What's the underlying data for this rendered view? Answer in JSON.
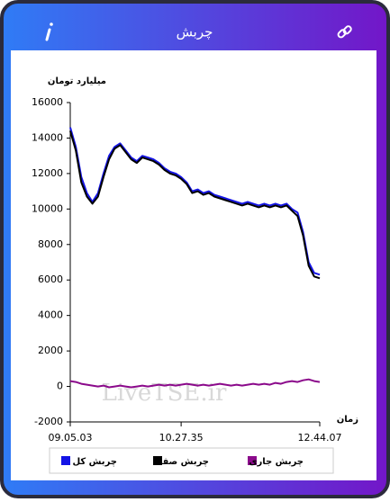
{
  "header": {
    "title": "چربش"
  },
  "chart_data": {
    "type": "line",
    "ylabel": "میلیارد تومان",
    "xlabel": "زمان",
    "watermark": "LiveTSE.ir",
    "categories": [
      "09.05.03",
      null,
      null,
      null,
      null,
      null,
      null,
      null,
      null,
      null,
      null,
      null,
      null,
      null,
      null,
      null,
      null,
      null,
      null,
      null,
      "10.27.35",
      null,
      null,
      null,
      null,
      null,
      null,
      null,
      null,
      null,
      null,
      null,
      null,
      null,
      null,
      null,
      null,
      null,
      null,
      null,
      null,
      null,
      null,
      null,
      null,
      "12.44.07"
    ],
    "ylim": [
      -2000,
      16000
    ],
    "yticks": [
      -2000,
      0,
      2000,
      4000,
      6000,
      8000,
      10000,
      12000,
      14000,
      16000
    ],
    "grid": false,
    "series": [
      {
        "name": "چربش کل",
        "color": "#1414e6",
        "values": [
          14600,
          13500,
          11800,
          10900,
          10400,
          10900,
          12000,
          13000,
          13500,
          13700,
          13300,
          12900,
          12700,
          13000,
          12900,
          12800,
          12600,
          12300,
          12100,
          12000,
          11800,
          11500,
          11000,
          11100,
          10900,
          11000,
          10800,
          10700,
          10600,
          10500,
          10400,
          10300,
          10400,
          10300,
          10200,
          10300,
          10200,
          10300,
          10200,
          10300,
          10000,
          9800,
          8700,
          7000,
          6400,
          6300
        ]
      },
      {
        "name": "چربش صف",
        "color": "#000000",
        "values": [
          14400,
          13300,
          11500,
          10700,
          10300,
          10700,
          11800,
          12800,
          13400,
          13600,
          13200,
          12800,
          12600,
          12900,
          12800,
          12700,
          12500,
          12200,
          12000,
          11900,
          11700,
          11400,
          10900,
          11000,
          10800,
          10900,
          10700,
          10600,
          10500,
          10400,
          10300,
          10200,
          10300,
          10200,
          10100,
          10200,
          10100,
          10200,
          10100,
          10200,
          9900,
          9600,
          8500,
          6800,
          6200,
          6100
        ]
      },
      {
        "name": "چربش جاری",
        "color": "#8b0a8b",
        "values": [
          300,
          250,
          150,
          100,
          50,
          0,
          50,
          -50,
          0,
          50,
          0,
          -50,
          0,
          50,
          0,
          50,
          100,
          50,
          100,
          50,
          100,
          150,
          100,
          50,
          100,
          50,
          100,
          150,
          100,
          50,
          100,
          50,
          100,
          150,
          100,
          150,
          100,
          200,
          150,
          250,
          300,
          250,
          350,
          400,
          300,
          250
        ]
      }
    ]
  }
}
